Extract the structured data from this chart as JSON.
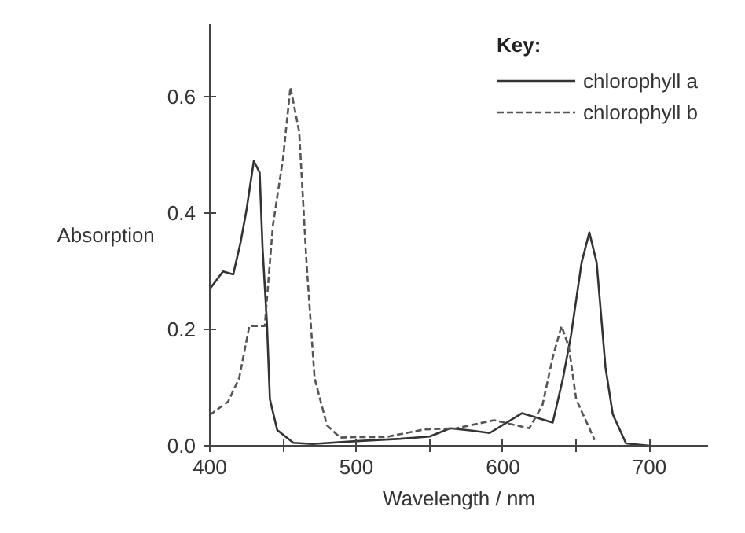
{
  "chart_data": {
    "type": "line",
    "xlabel": "Wavelength / nm",
    "ylabel": "Absorption",
    "legend_title": "Key:",
    "xlim": [
      400,
      740
    ],
    "ylim": [
      0,
      0.725
    ],
    "xticks": [
      400,
      {
        "value": 450,
        "label": null
      },
      500,
      {
        "value": 550,
        "label": null
      },
      600,
      {
        "value": 650,
        "label": null
      },
      700
    ],
    "yticks": [
      {
        "value": 0,
        "label": "0.0"
      },
      0.2,
      0.4,
      0.6
    ],
    "grid": false,
    "legend": "top right",
    "marker": "none",
    "series": [
      {
        "name": "chlorophyll a",
        "color": "#333333",
        "line_style": "solid",
        "x": [
          400,
          409,
          416,
          421,
          425,
          430,
          434,
          436,
          439,
          441,
          446,
          457,
          470,
          500,
          530,
          550,
          564,
          579,
          591,
          613,
          634,
          641,
          646.5,
          653.7,
          659,
          664,
          670,
          675,
          684,
          700
        ],
        "values": [
          0.27,
          0.3,
          0.295,
          0.35,
          0.405,
          0.49,
          0.47,
          0.34,
          0.21,
          0.08,
          0.027,
          0.005,
          0.003,
          0.008,
          0.012,
          0.016,
          0.03,
          0.026,
          0.022,
          0.056,
          0.04,
          0.116,
          0.19,
          0.315,
          0.367,
          0.315,
          0.135,
          0.054,
          0.004,
          0.0
        ]
      },
      {
        "name": "chlorophyll b",
        "color": "#555555",
        "line_style": "dashed",
        "x": [
          400,
          412.5,
          420,
          427,
          437.5,
          443,
          450,
          455,
          461,
          466,
          471.5,
          480,
          489,
          500,
          520,
          546,
          568,
          594,
          618,
          627,
          634,
          640,
          645,
          650,
          662.6
        ],
        "values": [
          0.053,
          0.076,
          0.116,
          0.206,
          0.206,
          0.378,
          0.495,
          0.617,
          0.54,
          0.315,
          0.116,
          0.035,
          0.014,
          0.015,
          0.015,
          0.028,
          0.03,
          0.044,
          0.03,
          0.07,
          0.152,
          0.206,
          0.17,
          0.08,
          0.01
        ]
      }
    ]
  }
}
